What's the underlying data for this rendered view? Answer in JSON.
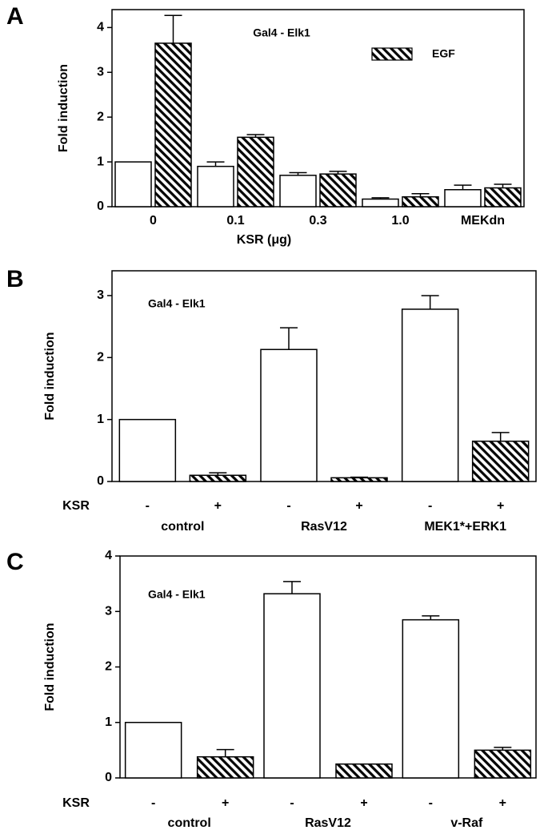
{
  "chart_data": [
    {
      "type": "bar",
      "label": "A",
      "annotation": "Gal4 - Elk1",
      "ylabel": "Fold induction",
      "xlabel": "KSR (μg)",
      "categories": [
        "0",
        "0.1",
        "0.3",
        "1.0",
        "MEKdn"
      ],
      "series": [
        {
          "name": null,
          "color": "#ffffff",
          "hatch": false,
          "values": [
            1.0,
            0.9,
            0.7,
            0.17,
            0.38
          ],
          "errors": [
            null,
            0.1,
            0.06,
            0.03,
            0.1
          ]
        },
        {
          "name": "EGF",
          "color": "#000000",
          "hatch": true,
          "values": [
            3.65,
            1.55,
            0.73,
            0.22,
            0.42
          ],
          "errors": [
            0.62,
            0.06,
            0.06,
            0.07,
            0.08
          ]
        }
      ],
      "ylim": [
        0,
        4.4
      ],
      "yticks": [
        0,
        1,
        2,
        3,
        4
      ],
      "legend": "top-right"
    },
    {
      "type": "bar",
      "label": "B",
      "annotation": "Gal4 - Elk1",
      "ylabel": "Fold induction",
      "row_label": "KSR",
      "categories": [
        "control",
        "RasV12",
        "MEK1*+ERK1"
      ],
      "series": [
        {
          "name": "-",
          "color": "#ffffff",
          "hatch": false,
          "values": [
            1.0,
            2.13,
            2.78
          ],
          "errors": [
            null,
            0.35,
            0.22
          ]
        },
        {
          "name": "+",
          "color": "#000000",
          "hatch": true,
          "values": [
            0.1,
            0.06,
            0.65
          ],
          "errors": [
            0.04,
            0.01,
            0.14
          ]
        }
      ],
      "ylim": [
        0,
        3.4
      ],
      "yticks": [
        0,
        1,
        2,
        3
      ]
    },
    {
      "type": "bar",
      "label": "C",
      "annotation": "Gal4 - Elk1",
      "ylabel": "Fold induction",
      "row_label": "KSR",
      "categories": [
        "control",
        "RasV12",
        "v-Raf"
      ],
      "series": [
        {
          "name": "-",
          "color": "#ffffff",
          "hatch": false,
          "values": [
            1.0,
            3.32,
            2.85
          ],
          "errors": [
            null,
            0.22,
            0.07
          ]
        },
        {
          "name": "+",
          "color": "#000000",
          "hatch": true,
          "values": [
            0.38,
            0.25,
            0.5
          ],
          "errors": [
            0.13,
            null,
            0.05
          ]
        }
      ],
      "ylim": [
        0,
        4
      ],
      "yticks": [
        0,
        1,
        2,
        3,
        4
      ]
    }
  ]
}
